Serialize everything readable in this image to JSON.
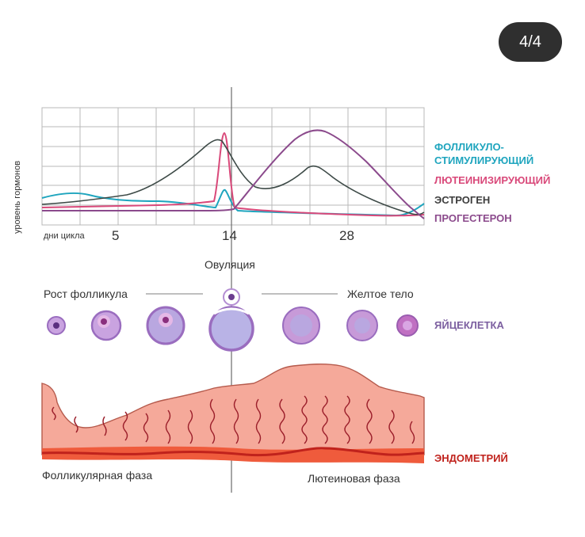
{
  "badge": {
    "page": "4/4"
  },
  "chart": {
    "ylabel": "уровень гормонов",
    "xlabel": "дни цикла",
    "ticks": [
      "5",
      "14",
      "28"
    ],
    "legend": [
      {
        "label": "ФОЛЛИКУЛО-",
        "color": "#1fa5be"
      },
      {
        "label": "СТИМУЛИРУЮЩИЙ",
        "color": "#1fa5be"
      },
      {
        "label": "ЛЮТЕИНИЗИРУЮЩИЙ",
        "color": "#d9497a"
      },
      {
        "label": "ЭСТРОГЕН",
        "color": "#3d3d3d"
      },
      {
        "label": "ПРОГЕСТЕРОН",
        "color": "#8b4a8c"
      }
    ]
  },
  "ovulation": {
    "label": "Овуляция"
  },
  "follicle": {
    "growth_label": "Рост фолликула",
    "corpus_luteum_label": "Желтое тело",
    "egg_label": "ЯЙЦЕКЛЕТКА"
  },
  "endometrium": {
    "label": "ЭНДОМЕТРИЙ",
    "follicular_phase": "Фолликулярная фаза",
    "luteal_phase": "Лютеиновая фаза"
  }
}
